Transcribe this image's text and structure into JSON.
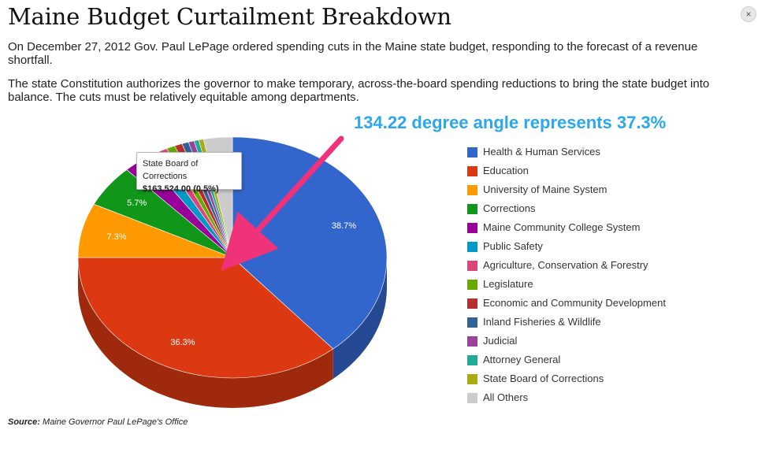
{
  "page": {
    "title": "Maine Budget Curtailment Breakdown",
    "paragraph1": "On December 27, 2012 Gov. Paul LePage ordered spending cuts in the Maine state budget, responding to the forecast of a revenue shortfall.",
    "paragraph2": "The state Constitution authorizes the governor to make temporary, across-the-board spending reductions to bring the state budget into balance. The cuts must be relatively equitable among departments.",
    "close_label": "×",
    "annotation": "134.22 degree angle represents 37.3%",
    "source_label": "Source:",
    "source_text": "Maine Governor Paul LePage's Office"
  },
  "tooltip": {
    "name": "State Board of Corrections",
    "value": "$163,524.00 (0.5%)"
  },
  "chart_data": {
    "type": "pie",
    "title": "Maine Budget Curtailment Breakdown",
    "labels": [
      "Health & Human Services",
      "Education",
      "University of Maine System",
      "Corrections",
      "Maine Community College System",
      "Public Safety",
      "Agriculture, Conservation & Forestry",
      "Legislature",
      "Economic and Community Development",
      "Inland Fisheries & Wildlife",
      "Judicial",
      "Attorney General",
      "State Board of Corrections",
      "All Others"
    ],
    "values": [
      38.7,
      36.3,
      7.3,
      5.7,
      2.4,
      1.6,
      1.0,
      0.9,
      0.8,
      0.7,
      0.6,
      0.5,
      0.5,
      3.0
    ],
    "data_labels": [
      "38.7%",
      "36.3%",
      "7.3%",
      "5.7%",
      "",
      "",
      "",
      "",
      "",
      "",
      "",
      "",
      "",
      ""
    ],
    "colors": [
      "#3366cc",
      "#dc3912",
      "#ff9900",
      "#109618",
      "#990099",
      "#0099c6",
      "#dd4477",
      "#66aa00",
      "#b82e2e",
      "#316395",
      "#994499",
      "#22aa99",
      "#aaaa11",
      "#cccccc"
    ],
    "legend_position": "right",
    "three_d": true
  }
}
